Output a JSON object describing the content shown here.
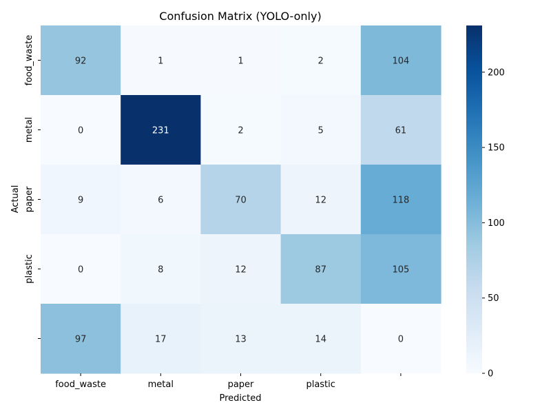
{
  "chart_data": {
    "type": "heatmap",
    "title": "Confusion Matrix (YOLO-only)",
    "xlabel": "Predicted",
    "ylabel": "Actual",
    "x_tick_labels": [
      "food_waste",
      "metal",
      "paper",
      "plastic",
      ""
    ],
    "y_tick_labels": [
      "food_waste",
      "metal",
      "paper",
      "plastic",
      ""
    ],
    "values": [
      [
        92,
        1,
        1,
        2,
        104
      ],
      [
        0,
        231,
        2,
        5,
        61
      ],
      [
        9,
        6,
        70,
        12,
        118
      ],
      [
        0,
        8,
        12,
        87,
        105
      ],
      [
        97,
        17,
        13,
        14,
        0
      ]
    ],
    "colormap": "Blues",
    "value_range": [
      0,
      231
    ],
    "colorbar_ticks": [
      0,
      50,
      100,
      150,
      200
    ]
  }
}
